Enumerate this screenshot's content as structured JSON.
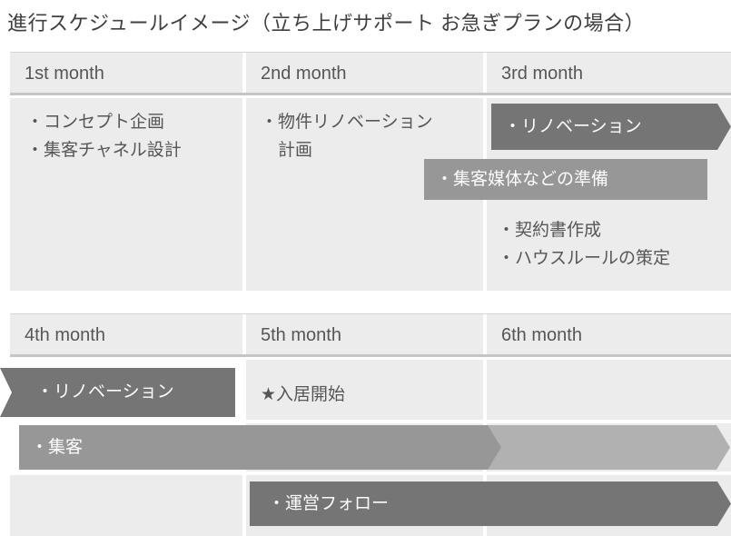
{
  "title": "進行スケジュールイメージ（立ち上げサポート お急ぎプランの場合）",
  "colors": {
    "cell_bg": "#ececec",
    "dark_bar": "#757575",
    "medium_bar": "#979797",
    "light_bar": "#b1b1b1",
    "header_underline": "#c5c5c5",
    "table_top_border": "#d6d6d6",
    "text": "#565656",
    "bar_text": "#fdfdfd"
  },
  "table1": {
    "headers": [
      "1st month",
      "2nd month",
      "3rd month"
    ],
    "month1_items": [
      "・コンセプト企画",
      "・集客チャネル設計"
    ],
    "month2_item_line1": "・物件リノベーション",
    "month2_item_line2": "計画",
    "bar_renovation": "・リノベーション",
    "bar_media_prep": "・集客媒体などの準備",
    "month3_items": [
      "・契約書作成",
      "・ハウスルールの策定"
    ]
  },
  "table2": {
    "headers": [
      "4th month",
      "5th month",
      "6th month"
    ],
    "bar_renovation": "・リノベーション",
    "milestone": "★入居開始",
    "bar_attract": "・集客",
    "bar_follow": "・運営フォロー"
  }
}
